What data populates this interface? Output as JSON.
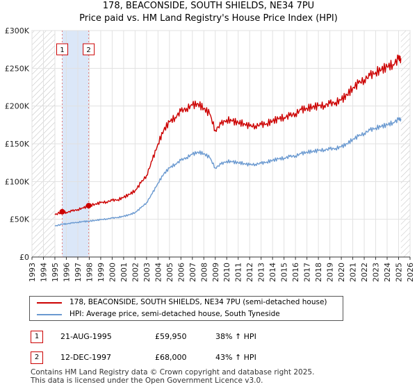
{
  "title_line1": "178, BEACONSIDE, SOUTH SHIELDS, NE34 7PU",
  "title_line2": "Price paid vs. HM Land Registry's House Price Index (HPI)",
  "colors": {
    "property_line": "#cc0000",
    "hpi_line": "#6a99d0",
    "grid": "#e1e1e1",
    "hatch": "#bdbdbd",
    "shade": "#dbe7f8",
    "marker_line": "#e07b7b"
  },
  "chart_data": {
    "type": "line",
    "title": "Price paid vs. HM Land Registry's House Price Index (HPI)",
    "xlabel": "",
    "ylabel": "",
    "xlim": [
      1993,
      2026
    ],
    "ylim": [
      0,
      300000
    ],
    "x_ticks": [
      "1993",
      "1994",
      "1995",
      "1996",
      "1997",
      "1998",
      "1999",
      "2000",
      "2001",
      "2002",
      "2003",
      "2004",
      "2005",
      "2006",
      "2007",
      "2008",
      "2009",
      "2010",
      "2011",
      "2012",
      "2013",
      "2014",
      "2015",
      "2016",
      "2017",
      "2018",
      "2019",
      "2020",
      "2021",
      "2022",
      "2023",
      "2024",
      "2025",
      "2026"
    ],
    "y_ticks": [
      {
        "value": 0,
        "label": "£0"
      },
      {
        "value": 50000,
        "label": "£50K"
      },
      {
        "value": 100000,
        "label": "£100K"
      },
      {
        "value": 150000,
        "label": "£150K"
      },
      {
        "value": 200000,
        "label": "£200K"
      },
      {
        "value": 250000,
        "label": "£250K"
      },
      {
        "value": 300000,
        "label": "£300K"
      }
    ],
    "hatched_ranges": [
      [
        1993,
        1995
      ],
      [
        2025.2,
        2026
      ]
    ],
    "shaded_range": [
      1995.64,
      1997.95
    ],
    "series": [
      {
        "name": "178, BEACONSIDE, SOUTH SHIELDS, NE34 7PU (semi-detached house)",
        "x": [
          1995.0,
          1995.64,
          1996.0,
          1996.5,
          1997.0,
          1997.5,
          1997.95,
          1998.5,
          1999.0,
          1999.5,
          2000.0,
          2000.5,
          2001.0,
          2001.5,
          2002.0,
          2002.5,
          2003.0,
          2003.5,
          2004.0,
          2004.5,
          2005.0,
          2005.5,
          2006.0,
          2006.5,
          2007.0,
          2007.5,
          2008.0,
          2008.5,
          2009.0,
          2009.5,
          2010.0,
          2010.5,
          2011.0,
          2011.5,
          2012.0,
          2012.5,
          2013.0,
          2013.5,
          2014.0,
          2014.5,
          2015.0,
          2015.5,
          2016.0,
          2016.5,
          2017.0,
          2017.5,
          2018.0,
          2018.5,
          2019.0,
          2019.5,
          2020.0,
          2020.5,
          2021.0,
          2021.5,
          2022.0,
          2022.5,
          2023.0,
          2023.5,
          2024.0,
          2024.5,
          2025.0,
          2025.2
        ],
        "values": [
          56000,
          59950,
          59000,
          61000,
          63000,
          65000,
          68000,
          70000,
          72000,
          73000,
          75000,
          76000,
          79000,
          83000,
          88000,
          98000,
          108000,
          128000,
          150000,
          168000,
          179000,
          185000,
          193000,
          197000,
          201000,
          203000,
          197000,
          190000,
          168000,
          176000,
          182000,
          180000,
          178000,
          177000,
          173000,
          174000,
          175000,
          177000,
          180000,
          183000,
          185000,
          187000,
          190000,
          195000,
          197000,
          199000,
          200000,
          201000,
          203000,
          205000,
          208000,
          215000,
          224000,
          230000,
          235000,
          240000,
          245000,
          248000,
          252000,
          255000,
          262000,
          263000
        ]
      },
      {
        "name": "HPI: Average price, semi-detached house, South Tyneside",
        "x": [
          1995.0,
          1995.64,
          1996.0,
          1996.5,
          1997.0,
          1997.5,
          1997.95,
          1998.5,
          1999.0,
          1999.5,
          2000.0,
          2000.5,
          2001.0,
          2001.5,
          2002.0,
          2002.5,
          2003.0,
          2003.5,
          2004.0,
          2004.5,
          2005.0,
          2005.5,
          2006.0,
          2006.5,
          2007.0,
          2007.5,
          2008.0,
          2008.5,
          2009.0,
          2009.5,
          2010.0,
          2010.5,
          2011.0,
          2011.5,
          2012.0,
          2012.5,
          2013.0,
          2013.5,
          2014.0,
          2014.5,
          2015.0,
          2015.5,
          2016.0,
          2016.5,
          2017.0,
          2017.5,
          2018.0,
          2018.5,
          2019.0,
          2019.5,
          2020.0,
          2020.5,
          2021.0,
          2021.5,
          2022.0,
          2022.5,
          2023.0,
          2023.5,
          2024.0,
          2024.5,
          2025.0,
          2025.2
        ],
        "values": [
          41000,
          43500,
          44000,
          45000,
          46000,
          47000,
          47500,
          48500,
          49500,
          50500,
          51500,
          52500,
          54000,
          56000,
          59000,
          65000,
          72000,
          84000,
          98000,
          110000,
          118000,
          123000,
          128000,
          132000,
          136000,
          139000,
          137000,
          132000,
          118000,
          123000,
          127000,
          126000,
          125000,
          124000,
          122000,
          123000,
          124000,
          126000,
          128000,
          130000,
          131000,
          133000,
          134000,
          137000,
          139000,
          140000,
          141000,
          142000,
          143000,
          144000,
          146000,
          150000,
          156000,
          160000,
          164000,
          168000,
          171000,
          173000,
          175000,
          178000,
          182000,
          183000
        ]
      }
    ],
    "annotations": [
      {
        "label": "1",
        "x": 1995.64
      },
      {
        "label": "2",
        "x": 1997.95
      }
    ],
    "sale_points": [
      {
        "x": 1995.64,
        "value": 59950
      },
      {
        "x": 1997.95,
        "value": 68000
      }
    ],
    "legend": [
      "178, BEACONSIDE, SOUTH SHIELDS, NE34 7PU (semi-detached house)",
      "HPI: Average price, semi-detached house, South Tyneside"
    ]
  },
  "legend": {
    "property_label": "178, BEACONSIDE, SOUTH SHIELDS, NE34 7PU (semi-detached house)",
    "hpi_label": "HPI: Average price, semi-detached house, South Tyneside"
  },
  "sales": [
    {
      "num": "1",
      "date": "21-AUG-1995",
      "price": "£59,950",
      "hpi": "38% ↑ HPI"
    },
    {
      "num": "2",
      "date": "12-DEC-1997",
      "price": "£68,000",
      "hpi": "43% ↑ HPI"
    }
  ],
  "footer": {
    "line1": "Contains HM Land Registry data © Crown copyright and database right 2025.",
    "line2": "This data is licensed under the Open Government Licence v3.0."
  }
}
